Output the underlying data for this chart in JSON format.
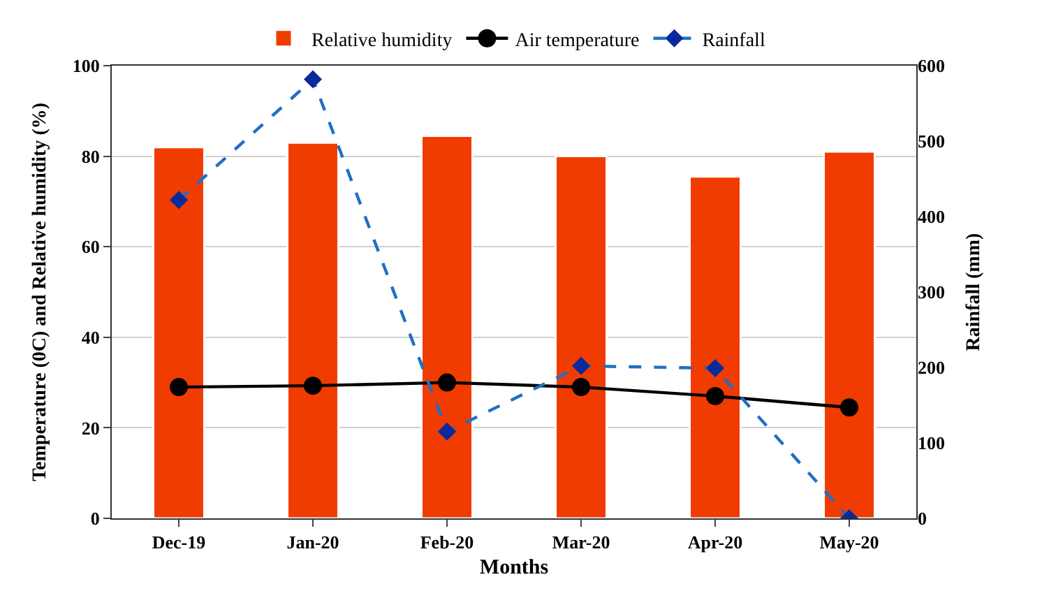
{
  "chart_data": {
    "type": "bar",
    "categories": [
      "Dec-19",
      "Jan-20",
      "Feb-20",
      "Mar-20",
      "Apr-20",
      "May-20"
    ],
    "xlabel": "Months",
    "ylabel": "Temperature (0C) and Relative humidity (%)",
    "y2label": "Rainfall (mm)",
    "series": [
      {
        "name": "Relative humidity",
        "color": "#f03c00",
        "values": [
          82,
          83,
          84.5,
          80,
          75.5,
          81
        ]
      },
      {
        "name": "Air temperature",
        "type": "line",
        "color": "#000000",
        "marker": "circle",
        "line_style": "solid",
        "values": [
          29,
          29.3,
          30,
          29,
          27,
          24.5
        ]
      },
      {
        "name": "Rainfall",
        "type": "line",
        "axis": "y2",
        "color": "#1f6fc5",
        "marker": "diamond",
        "line_style": "dashed",
        "values": [
          422,
          582,
          115,
          202,
          199,
          0
        ]
      }
    ],
    "ylim": [
      0,
      100
    ],
    "yticks": [
      0,
      20,
      40,
      60,
      80,
      100
    ],
    "y2lim": [
      0,
      600
    ],
    "y2ticks": [
      0,
      100,
      200,
      300,
      400,
      500,
      600
    ],
    "grid": "y",
    "legend": "top"
  }
}
